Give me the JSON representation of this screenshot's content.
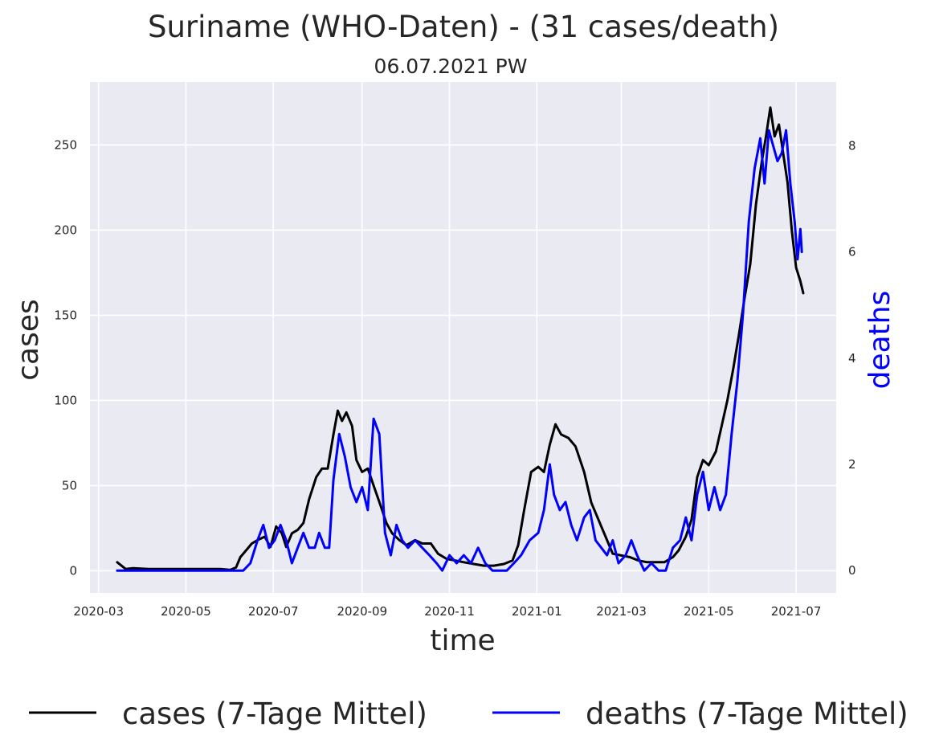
{
  "chart_data": {
    "type": "line",
    "title": "Suriname (WHO-Daten) - (31 cases/death)",
    "subtitle": "06.07.2021 PW",
    "xlabel": "time",
    "ylabel": "cases",
    "ylabel_right": "deaths",
    "ylim": [
      -13,
      287
    ],
    "ylim_right": [
      -0.42,
      9.2
    ],
    "xlim": [
      "2020-02-24",
      "2021-07-29"
    ],
    "grid": true,
    "legend_placement": "bottom",
    "x_ticks": [
      "2020-03",
      "2020-05",
      "2020-07",
      "2020-09",
      "2020-11",
      "2021-01",
      "2021-03",
      "2021-05",
      "2021-07"
    ],
    "y_ticks": [
      0,
      50,
      100,
      150,
      200,
      250
    ],
    "y_ticks_right": [
      0,
      2,
      4,
      6,
      8
    ],
    "series": [
      {
        "name": "cases (7-Tage Mittel)",
        "axis": "left",
        "color": "#000000",
        "points": [
          [
            "2020-03-14",
            5
          ],
          [
            "2020-03-17",
            3
          ],
          [
            "2020-03-20",
            1
          ],
          [
            "2020-03-25",
            1.5
          ],
          [
            "2020-04-05",
            1
          ],
          [
            "2020-05-01",
            1
          ],
          [
            "2020-05-25",
            1
          ],
          [
            "2020-06-01",
            0.5
          ],
          [
            "2020-06-05",
            2
          ],
          [
            "2020-06-08",
            8
          ],
          [
            "2020-06-12",
            12
          ],
          [
            "2020-06-16",
            16
          ],
          [
            "2020-06-20",
            18
          ],
          [
            "2020-06-25",
            20
          ],
          [
            "2020-06-29",
            14
          ],
          [
            "2020-07-03",
            26
          ],
          [
            "2020-07-07",
            22
          ],
          [
            "2020-07-10",
            14
          ],
          [
            "2020-07-14",
            22
          ],
          [
            "2020-07-18",
            24
          ],
          [
            "2020-07-22",
            28
          ],
          [
            "2020-07-26",
            42
          ],
          [
            "2020-07-31",
            55
          ],
          [
            "2020-08-04",
            60
          ],
          [
            "2020-08-08",
            60
          ],
          [
            "2020-08-12",
            80
          ],
          [
            "2020-08-15",
            94
          ],
          [
            "2020-08-18",
            88
          ],
          [
            "2020-08-21",
            93
          ],
          [
            "2020-08-25",
            85
          ],
          [
            "2020-08-28",
            65
          ],
          [
            "2020-09-01",
            58
          ],
          [
            "2020-09-05",
            60
          ],
          [
            "2020-09-09",
            50
          ],
          [
            "2020-09-14",
            38
          ],
          [
            "2020-09-18",
            28
          ],
          [
            "2020-09-22",
            22
          ],
          [
            "2020-09-27",
            18
          ],
          [
            "2020-10-02",
            15
          ],
          [
            "2020-10-08",
            18
          ],
          [
            "2020-10-13",
            16
          ],
          [
            "2020-10-19",
            16
          ],
          [
            "2020-10-24",
            10
          ],
          [
            "2020-10-30",
            7
          ],
          [
            "2020-11-05",
            6
          ],
          [
            "2020-11-11",
            5
          ],
          [
            "2020-11-18",
            4
          ],
          [
            "2020-11-25",
            3
          ],
          [
            "2020-12-02",
            3
          ],
          [
            "2020-12-09",
            4
          ],
          [
            "2020-12-15",
            6
          ],
          [
            "2020-12-19",
            15
          ],
          [
            "2020-12-23",
            35
          ],
          [
            "2020-12-28",
            58
          ],
          [
            "2021-01-02",
            61
          ],
          [
            "2021-01-06",
            58
          ],
          [
            "2021-01-10",
            74
          ],
          [
            "2021-01-14",
            86
          ],
          [
            "2021-01-18",
            80
          ],
          [
            "2021-01-23",
            78
          ],
          [
            "2021-01-28",
            73
          ],
          [
            "2021-02-03",
            58
          ],
          [
            "2021-02-08",
            40
          ],
          [
            "2021-02-13",
            30
          ],
          [
            "2021-02-18",
            20
          ],
          [
            "2021-02-23",
            10
          ],
          [
            "2021-03-01",
            9
          ],
          [
            "2021-03-07",
            8
          ],
          [
            "2021-03-13",
            6
          ],
          [
            "2021-03-19",
            5
          ],
          [
            "2021-03-25",
            5
          ],
          [
            "2021-03-31",
            5
          ],
          [
            "2021-04-06",
            8
          ],
          [
            "2021-04-10",
            12
          ],
          [
            "2021-04-15",
            20
          ],
          [
            "2021-04-19",
            30
          ],
          [
            "2021-04-23",
            55
          ],
          [
            "2021-04-27",
            65
          ],
          [
            "2021-05-01",
            62
          ],
          [
            "2021-05-06",
            70
          ],
          [
            "2021-05-10",
            85
          ],
          [
            "2021-05-14",
            100
          ],
          [
            "2021-05-18",
            118
          ],
          [
            "2021-05-22",
            138
          ],
          [
            "2021-05-26",
            160
          ],
          [
            "2021-05-30",
            180
          ],
          [
            "2021-06-03",
            215
          ],
          [
            "2021-06-07",
            240
          ],
          [
            "2021-06-10",
            255
          ],
          [
            "2021-06-13",
            272
          ],
          [
            "2021-06-16",
            255
          ],
          [
            "2021-06-19",
            262
          ],
          [
            "2021-06-22",
            245
          ],
          [
            "2021-06-25",
            228
          ],
          [
            "2021-06-28",
            200
          ],
          [
            "2021-07-01",
            178
          ],
          [
            "2021-07-04",
            170
          ],
          [
            "2021-07-06",
            163
          ]
        ]
      },
      {
        "name": "deaths (7-Tage Mittel)",
        "axis": "right",
        "color": "#0000ff",
        "points": [
          [
            "2020-03-14",
            0
          ],
          [
            "2020-06-10",
            0
          ],
          [
            "2020-06-15",
            0.14
          ],
          [
            "2020-06-20",
            0.57
          ],
          [
            "2020-06-24",
            0.86
          ],
          [
            "2020-06-28",
            0.43
          ],
          [
            "2020-07-02",
            0.57
          ],
          [
            "2020-07-06",
            0.86
          ],
          [
            "2020-07-10",
            0.57
          ],
          [
            "2020-07-14",
            0.14
          ],
          [
            "2020-07-18",
            0.43
          ],
          [
            "2020-07-22",
            0.71
          ],
          [
            "2020-07-26",
            0.43
          ],
          [
            "2020-07-30",
            0.43
          ],
          [
            "2020-08-02",
            0.71
          ],
          [
            "2020-08-06",
            0.43
          ],
          [
            "2020-08-09",
            0.43
          ],
          [
            "2020-08-12",
            1.71
          ],
          [
            "2020-08-16",
            2.57
          ],
          [
            "2020-08-20",
            2.14
          ],
          [
            "2020-08-24",
            1.57
          ],
          [
            "2020-08-28",
            1.29
          ],
          [
            "2020-09-01",
            1.57
          ],
          [
            "2020-09-05",
            1.14
          ],
          [
            "2020-09-09",
            2.86
          ],
          [
            "2020-09-13",
            2.57
          ],
          [
            "2020-09-17",
            0.71
          ],
          [
            "2020-09-21",
            0.29
          ],
          [
            "2020-09-25",
            0.86
          ],
          [
            "2020-09-29",
            0.57
          ],
          [
            "2020-10-03",
            0.43
          ],
          [
            "2020-10-08",
            0.57
          ],
          [
            "2020-10-13",
            0.43
          ],
          [
            "2020-10-18",
            0.29
          ],
          [
            "2020-10-23",
            0.14
          ],
          [
            "2020-10-27",
            0
          ],
          [
            "2020-11-01",
            0.29
          ],
          [
            "2020-11-06",
            0.14
          ],
          [
            "2020-11-11",
            0.29
          ],
          [
            "2020-11-16",
            0.14
          ],
          [
            "2020-11-21",
            0.43
          ],
          [
            "2020-11-26",
            0.14
          ],
          [
            "2020-12-01",
            0
          ],
          [
            "2020-12-11",
            0
          ],
          [
            "2020-12-16",
            0.14
          ],
          [
            "2020-12-21",
            0.29
          ],
          [
            "2020-12-27",
            0.57
          ],
          [
            "2021-01-02",
            0.71
          ],
          [
            "2021-01-06",
            1.14
          ],
          [
            "2021-01-10",
            2.0
          ],
          [
            "2021-01-13",
            1.43
          ],
          [
            "2021-01-17",
            1.14
          ],
          [
            "2021-01-21",
            1.29
          ],
          [
            "2021-01-25",
            0.86
          ],
          [
            "2021-01-29",
            0.57
          ],
          [
            "2021-02-03",
            1.0
          ],
          [
            "2021-02-07",
            1.14
          ],
          [
            "2021-02-11",
            0.57
          ],
          [
            "2021-02-15",
            0.43
          ],
          [
            "2021-02-19",
            0.29
          ],
          [
            "2021-02-23",
            0.57
          ],
          [
            "2021-02-27",
            0.14
          ],
          [
            "2021-03-04",
            0.29
          ],
          [
            "2021-03-08",
            0.57
          ],
          [
            "2021-03-12",
            0.29
          ],
          [
            "2021-03-17",
            0
          ],
          [
            "2021-03-22",
            0.14
          ],
          [
            "2021-03-27",
            0
          ],
          [
            "2021-04-01",
            0
          ],
          [
            "2021-04-06",
            0.43
          ],
          [
            "2021-04-11",
            0.57
          ],
          [
            "2021-04-15",
            1.0
          ],
          [
            "2021-04-19",
            0.57
          ],
          [
            "2021-04-23",
            1.43
          ],
          [
            "2021-04-27",
            1.86
          ],
          [
            "2021-05-01",
            1.14
          ],
          [
            "2021-05-05",
            1.57
          ],
          [
            "2021-05-09",
            1.14
          ],
          [
            "2021-05-13",
            1.43
          ],
          [
            "2021-05-17",
            2.57
          ],
          [
            "2021-05-21",
            3.57
          ],
          [
            "2021-05-25",
            4.86
          ],
          [
            "2021-05-29",
            6.57
          ],
          [
            "2021-06-02",
            7.57
          ],
          [
            "2021-06-06",
            8.14
          ],
          [
            "2021-06-09",
            7.29
          ],
          [
            "2021-06-12",
            8.29
          ],
          [
            "2021-06-15",
            8.0
          ],
          [
            "2021-06-18",
            7.71
          ],
          [
            "2021-06-21",
            7.86
          ],
          [
            "2021-06-24",
            8.29
          ],
          [
            "2021-06-27",
            7.29
          ],
          [
            "2021-06-30",
            6.57
          ],
          [
            "2021-07-02",
            5.86
          ],
          [
            "2021-07-04",
            6.43
          ],
          [
            "2021-07-05",
            6.0
          ]
        ]
      }
    ]
  }
}
